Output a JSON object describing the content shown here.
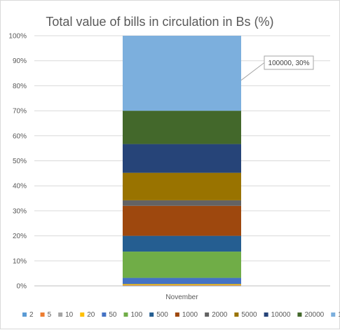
{
  "chart_data": {
    "type": "bar",
    "stacked": "100%",
    "title": "Total value of bills in circulation in Bs (%)",
    "xlabel": "",
    "ylabel": "",
    "categories": [
      "November"
    ],
    "ylim": [
      0,
      100
    ],
    "yticks": [
      "0%",
      "10%",
      "20%",
      "30%",
      "40%",
      "50%",
      "60%",
      "70%",
      "80%",
      "90%",
      "100%"
    ],
    "grid": true,
    "legend_position": "bottom",
    "series": [
      {
        "name": "2",
        "color": "#5b9bd5",
        "values": [
          0.05
        ]
      },
      {
        "name": "5",
        "color": "#ed7d31",
        "values": [
          0.1
        ]
      },
      {
        "name": "10",
        "color": "#a5a5a5",
        "values": [
          0.15
        ]
      },
      {
        "name": "20",
        "color": "#ffc000",
        "values": [
          0.4
        ]
      },
      {
        "name": "50",
        "color": "#4472c4",
        "values": [
          2.5
        ]
      },
      {
        "name": "100",
        "color": "#70ad47",
        "values": [
          10.5
        ]
      },
      {
        "name": "500",
        "color": "#255e91",
        "values": [
          6.3
        ]
      },
      {
        "name": "1000",
        "color": "#9e480e",
        "values": [
          12
        ]
      },
      {
        "name": "2000",
        "color": "#636363",
        "values": [
          2.2
        ]
      },
      {
        "name": "5000",
        "color": "#997300",
        "values": [
          11
        ]
      },
      {
        "name": "10000",
        "color": "#264478",
        "values": [
          11.5
        ]
      },
      {
        "name": "20000",
        "color": "#43682b",
        "values": [
          13.3
        ]
      },
      {
        "name": "100000",
        "color": "#7cafdd",
        "values": [
          30
        ]
      }
    ],
    "annotations": [
      {
        "text": "100000, 30%",
        "series": "100000"
      }
    ]
  }
}
